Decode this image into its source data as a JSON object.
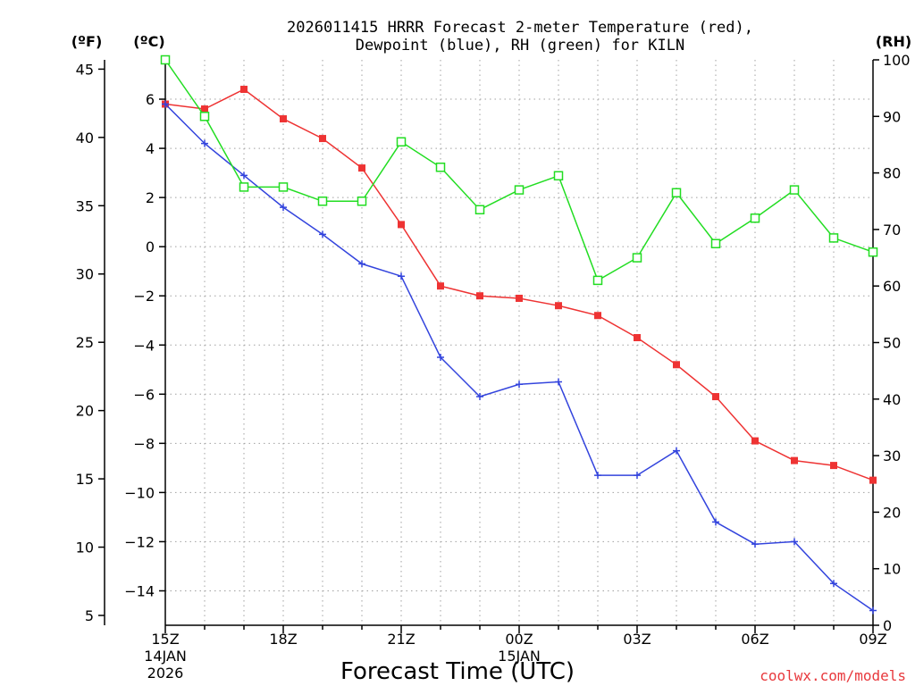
{
  "chart_data": {
    "type": "line",
    "title_line1": "2026011415 HRRR Forecast 2-meter Temperature (red),",
    "title_line2": "Dewpoint (blue), RH (green) for KILN",
    "xlabel": "Forecast Time (UTC)",
    "credit": "coolwx.com/models",
    "units": {
      "fahrenheit": "(ºF)",
      "celsius": "(ºC)",
      "rh": "(RH)"
    },
    "x": [
      0,
      1,
      2,
      3,
      4,
      5,
      6,
      7,
      8,
      9,
      10,
      11,
      12,
      13,
      14,
      15,
      16,
      17,
      18
    ],
    "x_ticks": [
      {
        "x": 0,
        "line1": "15Z",
        "line2": "14JAN",
        "line3": "2026"
      },
      {
        "x": 3,
        "line1": "18Z"
      },
      {
        "x": 6,
        "line1": "21Z"
      },
      {
        "x": 9,
        "line1": "00Z",
        "line2": "15JAN"
      },
      {
        "x": 12,
        "line1": "03Z"
      },
      {
        "x": 15,
        "line1": "06Z"
      },
      {
        "x": 18,
        "line1": "09Z"
      }
    ],
    "xlim": [
      0,
      18
    ],
    "ylim_c": [
      -15.4,
      7.6
    ],
    "ylim_rh": [
      0,
      100
    ],
    "celsius_ticks": [
      6,
      4,
      2,
      0,
      -2,
      -4,
      -6,
      -8,
      -10,
      -12,
      -14
    ],
    "fahrenheit_ticks": [
      45,
      40,
      35,
      30,
      25,
      20,
      15,
      10,
      5
    ],
    "rh_ticks": [
      100,
      90,
      80,
      70,
      60,
      50,
      40,
      30,
      20,
      10,
      0
    ],
    "grid": true,
    "series": [
      {
        "name": "Temperature",
        "axis": "celsius",
        "color": "#ee3333",
        "marker": "filled-square",
        "values": [
          5.8,
          5.6,
          6.4,
          5.2,
          4.4,
          3.2,
          0.9,
          -1.6,
          -2.0,
          -2.1,
          -2.4,
          -2.8,
          -3.7,
          -4.8,
          -6.1,
          -7.9,
          -8.7,
          -8.9,
          -9.5
        ]
      },
      {
        "name": "Dewpoint",
        "axis": "celsius",
        "color": "#3344dd",
        "marker": "plus",
        "values": [
          5.8,
          4.2,
          2.9,
          1.6,
          0.5,
          -0.7,
          -1.2,
          -4.5,
          -6.1,
          -5.6,
          -5.5,
          -9.3,
          -9.3,
          -8.3,
          -11.2,
          -12.1,
          -12.0,
          -13.7,
          -14.8
        ]
      },
      {
        "name": "RH",
        "axis": "rh",
        "color": "#22dd22",
        "marker": "open-square",
        "values": [
          100,
          90,
          77.5,
          77.5,
          75,
          75,
          85.5,
          81,
          73.5,
          77,
          79.5,
          61,
          65,
          76.5,
          67.5,
          72,
          77,
          68.5,
          66
        ]
      }
    ]
  }
}
